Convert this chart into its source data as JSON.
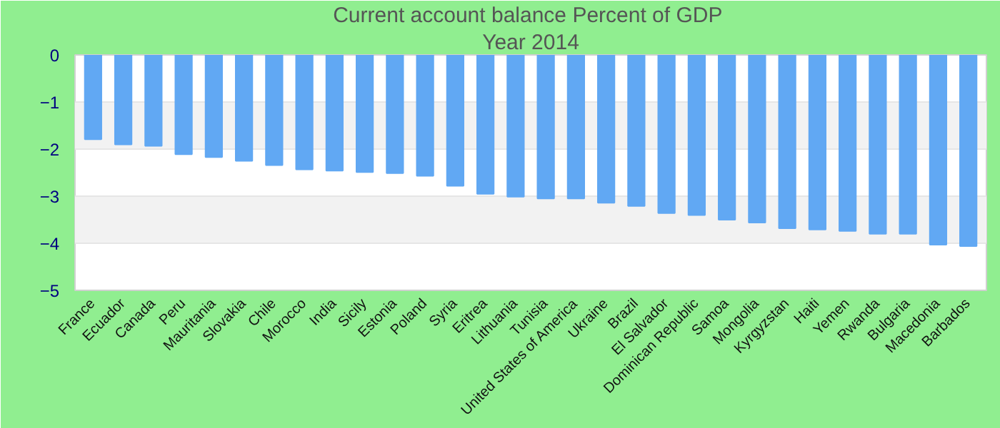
{
  "chart_data": {
    "type": "bar",
    "title": "Current account balance  Percent of GDP",
    "subtitle": "Year 2014",
    "categories": [
      "France",
      "Ecuador",
      "Canada",
      "Peru",
      "Mauritania",
      "Slovakia",
      "Chile",
      "Morocco",
      "India",
      "Sicily",
      "Estonia",
      "Poland",
      "Syria",
      "Eritrea",
      "Lithuania",
      "Tunisia",
      "United States of America",
      "Ukraine",
      "Brazil",
      "El Salvador",
      "Dominican Republic",
      "Samoa",
      "Mongolia",
      "Kyrgyzstan",
      "Haiti",
      "Yemen",
      "Rwanda",
      "Bulgaria",
      "Macedonia",
      "Barbados"
    ],
    "values": [
      -1.79,
      -1.9,
      -1.93,
      -2.11,
      -2.17,
      -2.25,
      -2.34,
      -2.43,
      -2.46,
      -2.49,
      -2.51,
      -2.57,
      -2.78,
      -2.95,
      -3.01,
      -3.05,
      -3.05,
      -3.14,
      -3.21,
      -3.36,
      -3.4,
      -3.5,
      -3.56,
      -3.68,
      -3.71,
      -3.74,
      -3.8,
      -3.8,
      -4.03,
      -4.06
    ],
    "color": "#61a8f3",
    "ylim": [
      -5,
      0
    ],
    "yticks": [
      -5,
      -4,
      -3,
      -2,
      -1,
      0
    ],
    "grid": "y"
  }
}
